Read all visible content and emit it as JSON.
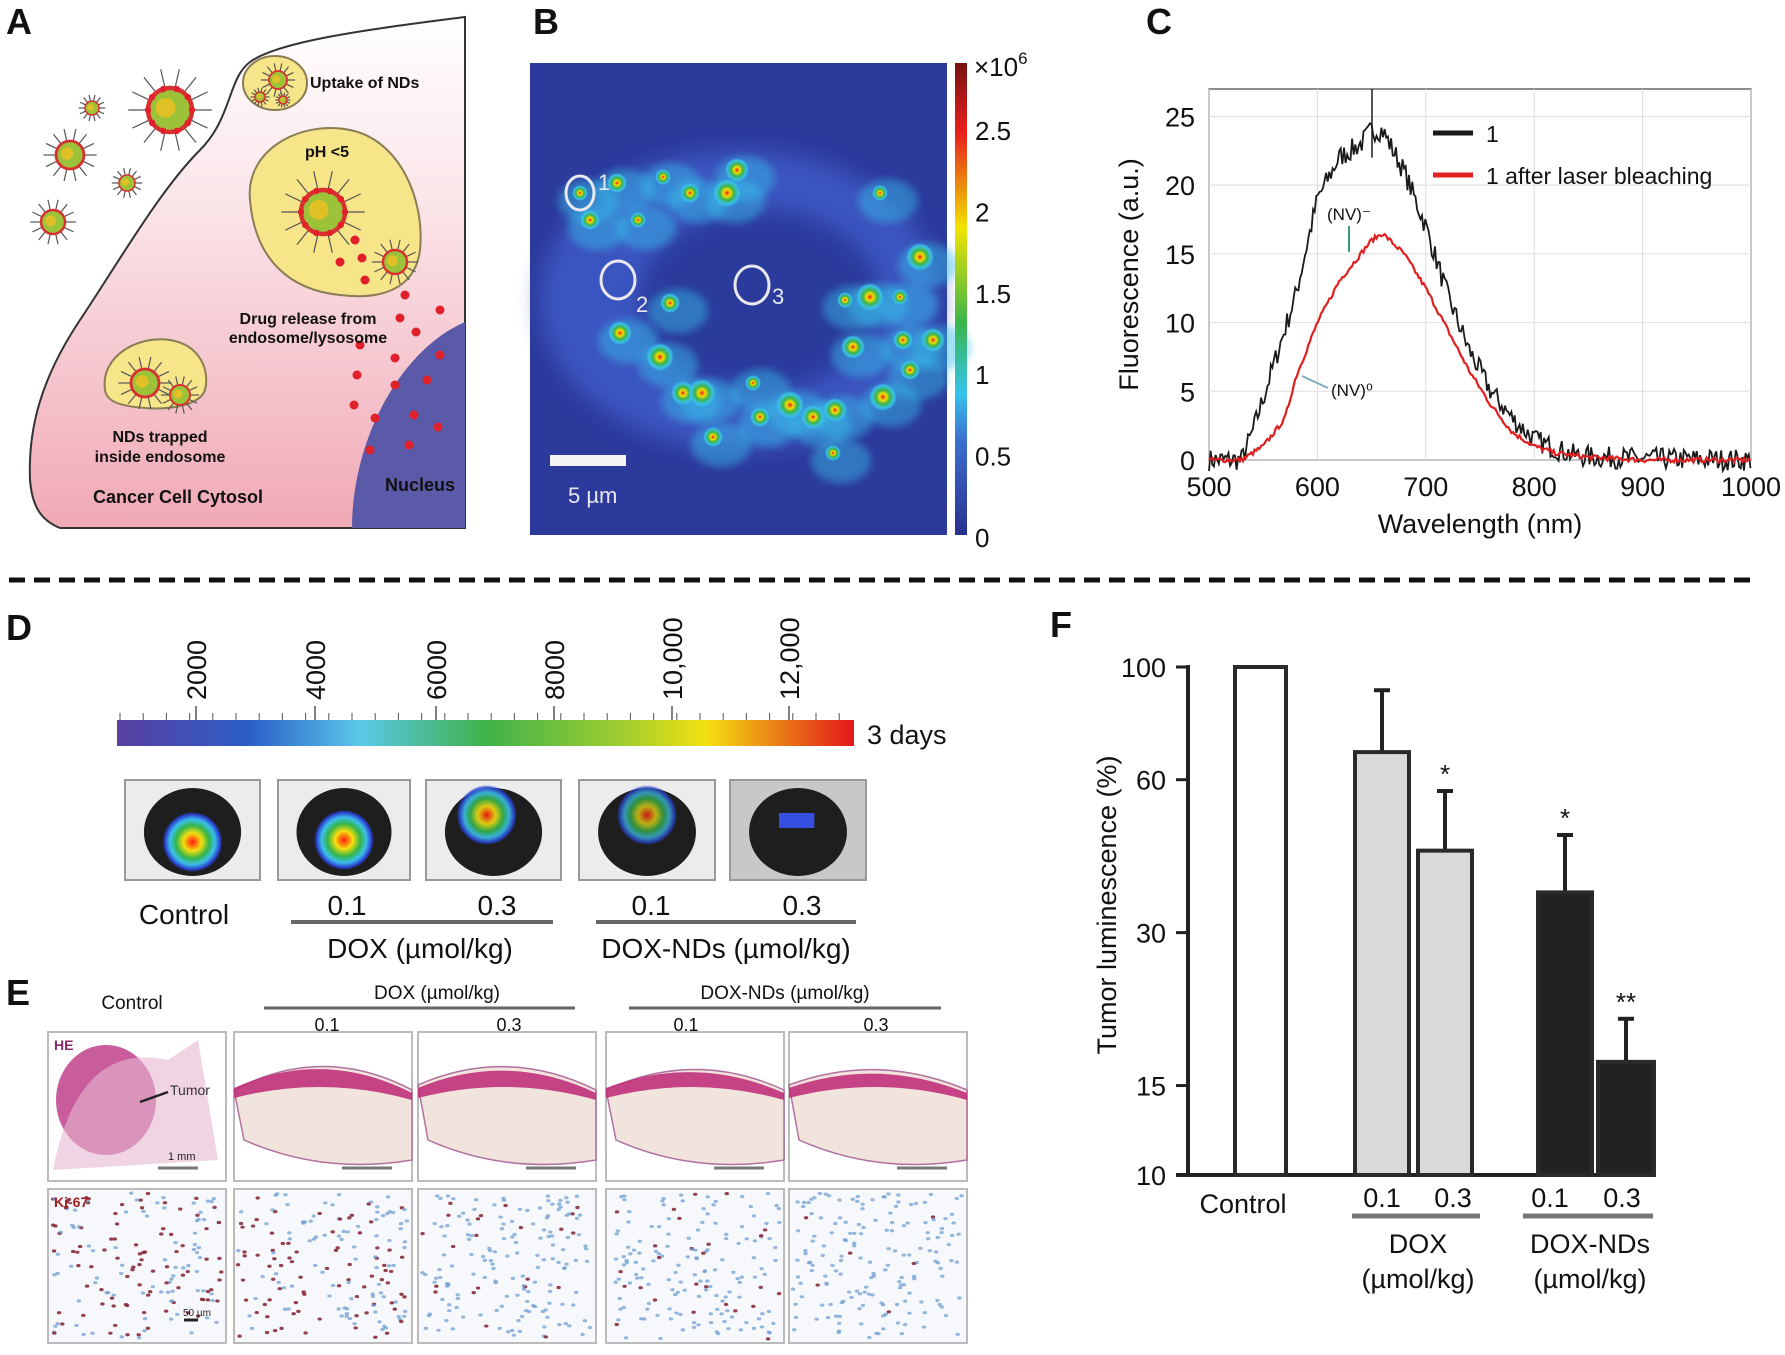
{
  "panels": {
    "A": {
      "label": "A",
      "texts": {
        "uptake": "Uptake of NDs",
        "ph": "pH <5",
        "release1": "Drug release from",
        "release2": "endosome/lysosome",
        "trapped1": "NDs trapped",
        "trapped2": "inside endosome",
        "cytosol": "Cancer Cell Cytosol",
        "nucleus": "Nucleus"
      },
      "colors": {
        "cytosol": "#f2b6c0",
        "nucleus": "#5b5aa8",
        "vesicle": "#f7e58a",
        "drug": "#e0202a"
      }
    },
    "B": {
      "label": "B",
      "colorbar": {
        "multiplier": "×10",
        "exponent": "6",
        "ticks": [
          "2.5",
          "2",
          "1.5",
          "1",
          "0.5",
          "0"
        ],
        "range": [
          0,
          2.9
        ]
      },
      "regions": [
        "1",
        "2",
        "3"
      ],
      "scale_bar": "5 µm"
    },
    "D": {
      "label": "D",
      "colorbar": {
        "ticks": [
          "2000",
          "4000",
          "6000",
          "8000",
          "10,000",
          "12,000"
        ],
        "caption": "3 days"
      },
      "samples": [
        {
          "label": "Control",
          "intensity": 1.0
        },
        {
          "label": "0.1",
          "intensity": 1.0
        },
        {
          "label": "0.3",
          "intensity": 0.7
        },
        {
          "label": "0.1",
          "intensity": 0.55
        },
        {
          "label": "0.3",
          "intensity": 0.25
        }
      ],
      "groups": [
        "DOX (µmol/kg)",
        "DOX-NDs (µmol/kg)"
      ]
    },
    "E": {
      "label": "E",
      "control": "Control",
      "groups": [
        "DOX (µmol/kg)",
        "DOX-NDs (µmol/kg)"
      ],
      "doses": [
        "0.1",
        "0.3",
        "0.1",
        "0.3"
      ],
      "rows": [
        "HE",
        "Ki-67"
      ],
      "annotations": {
        "tumor": "Tumor",
        "scale_he": "1 mm",
        "scale_ki": "50 µm"
      }
    }
  },
  "chart_data": [
    {
      "panel": "C",
      "type": "line",
      "xlabel": "Wavelength (nm)",
      "ylabel": "Fluorescence (a.u.)",
      "xlim": [
        500,
        1000
      ],
      "ylim": [
        0,
        27
      ],
      "xticks": [
        "500",
        "600",
        "700",
        "800",
        "900",
        "1000"
      ],
      "yticks": [
        "0",
        "5",
        "10",
        "15",
        "20",
        "25"
      ],
      "grid": true,
      "legend": "top-right",
      "annotations": [
        "(NV)⁻",
        "(NV)⁰"
      ],
      "series": [
        {
          "name": "1",
          "color": "#1a1a1a",
          "x": [
            500,
            520,
            530,
            540,
            560,
            580,
            600,
            620,
            640,
            650,
            660,
            680,
            700,
            720,
            740,
            760,
            780,
            800,
            820,
            840,
            860,
            900,
            1000
          ],
          "y": [
            0,
            0,
            0,
            2,
            7,
            12,
            19,
            22,
            23,
            24,
            24,
            21,
            17,
            12,
            8,
            5,
            3,
            1.5,
            0.8,
            0.3,
            0.2,
            0.1,
            0
          ]
        },
        {
          "name": "1 after laser bleaching",
          "color": "#e02020",
          "x": [
            500,
            530,
            550,
            570,
            580,
            600,
            620,
            630,
            640,
            650,
            660,
            680,
            700,
            720,
            740,
            760,
            780,
            800,
            820,
            850,
            900,
            1000
          ],
          "y": [
            0,
            0,
            1,
            3,
            6,
            10,
            13,
            14,
            15,
            16,
            16.5,
            15,
            12.5,
            9.5,
            6.5,
            4,
            2,
            1,
            0.5,
            0.2,
            0,
            0
          ]
        }
      ]
    },
    {
      "panel": "F",
      "type": "bar",
      "ylabel": "Tumor luminescence (%)",
      "yscale": "log",
      "ylim": [
        10,
        100
      ],
      "yticks": [
        "100",
        "60",
        "30",
        "15",
        "10"
      ],
      "categories": [
        "Control",
        "0.1",
        "0.3",
        "0.1",
        "0.3"
      ],
      "groups": [
        {
          "name": "DOX",
          "unit": "(µmol/kg)"
        },
        {
          "name": "DOX-NDs",
          "unit": "(µmol/kg)"
        }
      ],
      "values": [
        100,
        68,
        43.5,
        36,
        16.7
      ],
      "error_upper": [
        null,
        90,
        57,
        46.7,
        20.3
      ],
      "significance": [
        "",
        "",
        "*",
        "*",
        "**"
      ],
      "colors": [
        "#ffffff",
        "#d9d9d9",
        "#d9d9d9",
        "#222222",
        "#222222"
      ]
    }
  ]
}
